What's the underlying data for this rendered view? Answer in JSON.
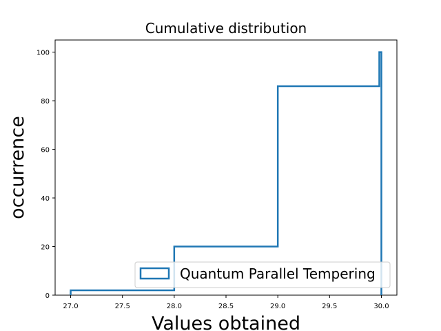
{
  "chart_data": {
    "type": "step",
    "title": "Cumulative distribution",
    "xlabel": "Values obtained",
    "ylabel": "occurrence",
    "xlim": [
      26.85,
      30.15
    ],
    "ylim": [
      0,
      105
    ],
    "x_ticks": [
      27.0,
      27.5,
      28.0,
      28.5,
      29.0,
      29.5,
      30.0
    ],
    "x_tick_labels": [
      "27.0",
      "27.5",
      "28.0",
      "28.5",
      "29.0",
      "29.5",
      "30.0"
    ],
    "y_ticks": [
      0,
      20,
      40,
      60,
      80,
      100
    ],
    "y_tick_labels": [
      "0",
      "20",
      "40",
      "60",
      "80",
      "100"
    ],
    "grid": false,
    "legend_position": "lower right",
    "series": [
      {
        "name": "Quantum Parallel Tempering",
        "color": "#1f77b4",
        "bins": [
          {
            "x0": 27.0,
            "x1": 28.0,
            "count": 2
          },
          {
            "x0": 28.0,
            "x1": 29.0,
            "count": 20
          },
          {
            "x0": 29.0,
            "x1": 29.98,
            "count": 86
          },
          {
            "x0": 29.98,
            "x1": 30.0,
            "count": 100
          }
        ]
      }
    ]
  }
}
